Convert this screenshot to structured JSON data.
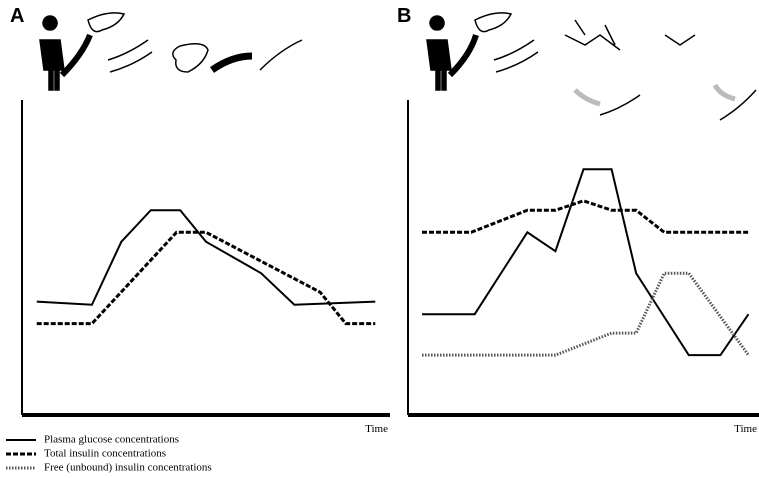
{
  "chart_data": [
    {
      "type": "line",
      "panel": "A",
      "xlabel": "Time",
      "xlim": [
        0,
        100
      ],
      "ylim": [
        0,
        100
      ],
      "series": [
        {
          "name": "Plasma glucose concentrations",
          "color": "#000000",
          "dash": "solid",
          "x": [
            4,
            19,
            27,
            35,
            43,
            50,
            65,
            74,
            96
          ],
          "values": [
            36,
            35,
            55,
            65,
            65,
            55,
            45,
            35,
            36
          ]
        },
        {
          "name": "Total insulin concentrations",
          "color": "#000000",
          "dash": "dashed",
          "x": [
            4,
            19,
            42,
            50,
            81,
            88,
            96
          ],
          "values": [
            29,
            29,
            58,
            58,
            39,
            29,
            29
          ]
        }
      ]
    },
    {
      "type": "line",
      "panel": "B",
      "xlabel": "Time",
      "xlim": [
        0,
        100
      ],
      "ylim": [
        0,
        100
      ],
      "series": [
        {
          "name": "Plasma glucose concentrations",
          "color": "#000000",
          "dash": "solid",
          "x": [
            4,
            19,
            34,
            42,
            50,
            58,
            65,
            80,
            89,
            97
          ],
          "values": [
            32,
            32,
            58,
            52,
            78,
            78,
            45,
            19,
            19,
            32
          ]
        },
        {
          "name": "Total insulin concentrations",
          "color": "#000000",
          "dash": "dashed",
          "x": [
            4,
            18,
            34,
            42,
            50,
            58,
            65,
            73,
            97
          ],
          "values": [
            58,
            58,
            65,
            65,
            68,
            65,
            65,
            58,
            58
          ]
        },
        {
          "name": "Free (unbound) insulin concentrations",
          "color": "#555555",
          "dash": "dotted",
          "x": [
            4,
            42,
            58,
            65,
            73,
            80,
            97
          ],
          "values": [
            19,
            19,
            26,
            26,
            45,
            45,
            19
          ]
        }
      ]
    }
  ]
}
